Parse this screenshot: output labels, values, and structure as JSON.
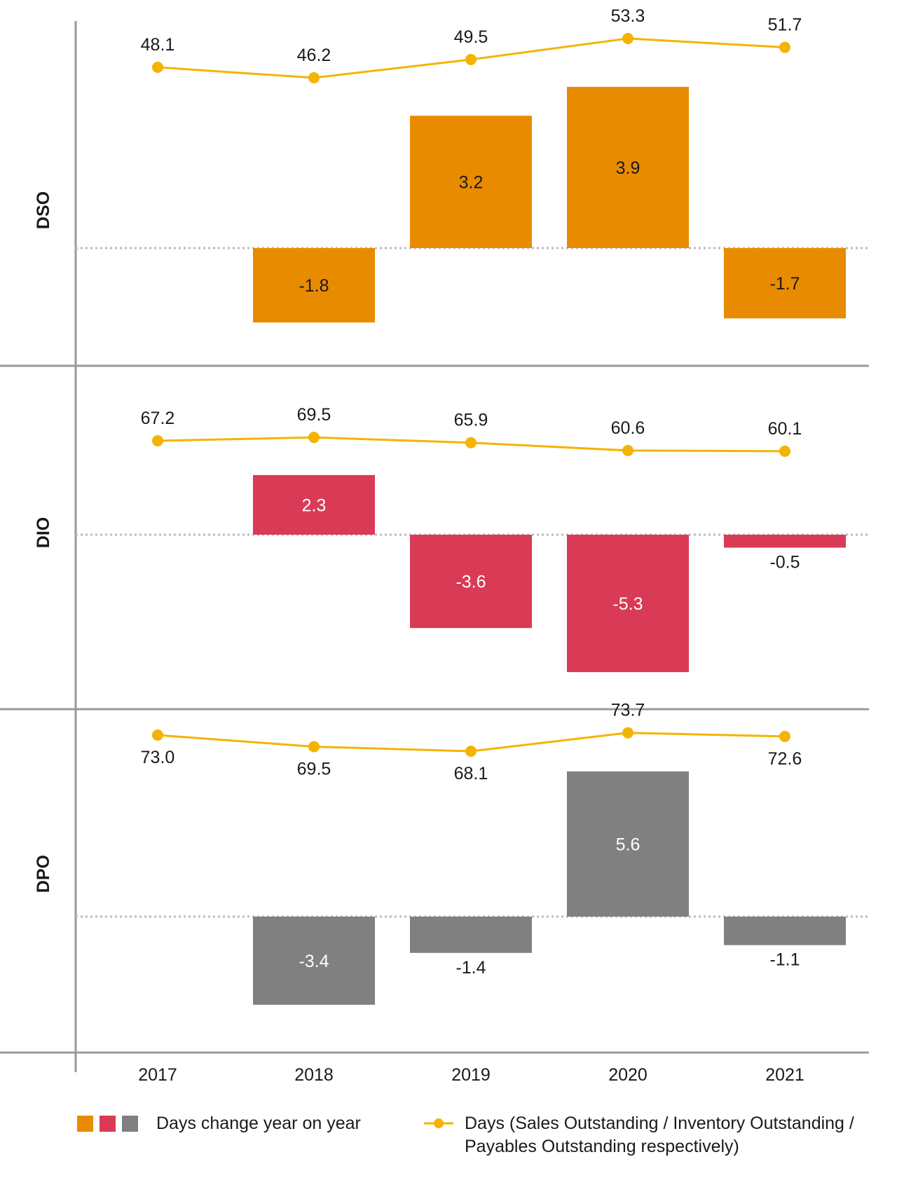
{
  "chart_data": {
    "type": "bar",
    "categories": [
      "2017",
      "2018",
      "2019",
      "2020",
      "2021"
    ],
    "panels": [
      {
        "label": "DSO",
        "bar_color": "#E98B00",
        "bar_label_color": "#1a1a1a",
        "line_values": [
          48.1,
          46.2,
          49.5,
          53.3,
          51.7
        ],
        "change_values": [
          null,
          -1.8,
          3.2,
          3.9,
          -1.7
        ]
      },
      {
        "label": "DIO",
        "bar_color": "#D93A55",
        "bar_label_color": "#ffffff",
        "line_values": [
          67.2,
          69.5,
          65.9,
          60.6,
          60.1
        ],
        "change_values": [
          null,
          2.3,
          -3.6,
          -5.3,
          -0.5
        ]
      },
      {
        "label": "DPO",
        "bar_color": "#808080",
        "bar_label_color": "#ffffff",
        "line_values": [
          73.0,
          69.5,
          68.1,
          73.7,
          72.6
        ],
        "change_values": [
          null,
          -3.4,
          -1.4,
          5.6,
          -1.1
        ]
      }
    ],
    "line_color": "#F5B301",
    "series": [
      {
        "name": "Days change year on year"
      },
      {
        "name": "Days (Sales Outstanding / Inventory Outstanding / Payables Outstanding respectively)"
      }
    ]
  },
  "legend": {
    "bars_label": "Days change year on year",
    "line_label_1": "Days (Sales Outstanding / Inventory Outstanding /",
    "line_label_2": "Payables Outstanding respectively)",
    "swatch_colors": [
      "#E98B00",
      "#D93A55",
      "#808080"
    ]
  }
}
